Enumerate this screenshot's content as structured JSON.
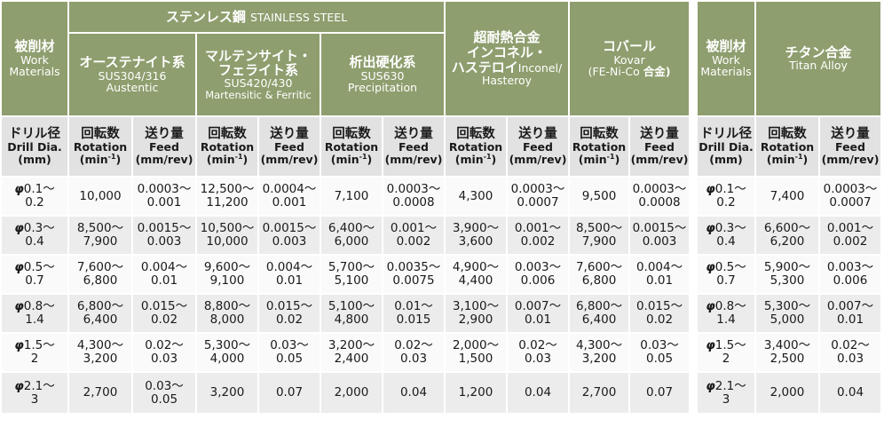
{
  "main_header": {
    "work_materials_ja": "被削材",
    "work_materials_en1": "Work",
    "work_materials_en2": "Materials",
    "stainless_ja": "ステンレス鋼",
    "stainless_en": "STAINLESS STEEL",
    "groups": [
      {
        "ja": "オーステナイト系",
        "l2": "SUS304/316",
        "l3": "Austentic"
      },
      {
        "ja": "マルテンサイト・",
        "ja2": "フェライト系",
        "l2": "SUS420/430",
        "l3": "Martensitic & Ferritic"
      },
      {
        "ja": "析出硬化系",
        "l2": "SUS630",
        "l3": "Precipitation"
      },
      {
        "ja": "超耐熱合金",
        "ja2": "インコネル・",
        "ja3": "ハステロイ",
        "ja3_en": "Inconel/",
        "l3": "Hasteroy"
      },
      {
        "ja": "コバール",
        "l2": "Kovar",
        "l3a": "(FE-Ni-Co ",
        "l3b": "合金)"
      }
    ]
  },
  "sub_header": {
    "drill_ja": "ドリル径",
    "drill_en": "Drill Dia.",
    "drill_unit": "(mm)",
    "rot_ja": "回転数",
    "rot_en": "Rotation",
    "rot_unit_a": "(min",
    "rot_unit_sup": "-1",
    "rot_unit_b": ")",
    "feed_ja": "送り量",
    "feed_en": "Feed",
    "feed_unit": "(mm/rev)"
  },
  "rows": [
    {
      "dia_phi": "φ",
      "dia_a": "0.1〜",
      "dia_b": "0.2",
      "c": [
        [
          "10,000",
          ""
        ],
        [
          "0.0003〜",
          "0.001"
        ],
        [
          "12,500〜",
          "11,200"
        ],
        [
          "0.0004〜",
          "0.001"
        ],
        [
          "7,100",
          ""
        ],
        [
          "0.0003〜",
          "0.0008"
        ],
        [
          "4,300",
          ""
        ],
        [
          "0.0003〜",
          "0.0007"
        ],
        [
          "9,500",
          ""
        ],
        [
          "0.0003〜",
          "0.0008"
        ]
      ]
    },
    {
      "dia_phi": "φ",
      "dia_a": "0.3〜",
      "dia_b": "0.4",
      "c": [
        [
          "8,500〜",
          "7,900"
        ],
        [
          "0.0015〜",
          "0.003"
        ],
        [
          "10,500〜",
          "10,000"
        ],
        [
          "0.0015〜",
          "0.003"
        ],
        [
          "6,400〜",
          "6,000"
        ],
        [
          "0.001〜",
          "0.002"
        ],
        [
          "3,900〜",
          "3,600"
        ],
        [
          "0.001〜",
          "0.002"
        ],
        [
          "8,500〜",
          "7,900"
        ],
        [
          "0.0015〜",
          "0.003"
        ]
      ]
    },
    {
      "dia_phi": "φ",
      "dia_a": "0.5〜",
      "dia_b": "0.7",
      "c": [
        [
          "7,600〜",
          "6,800"
        ],
        [
          "0.004〜",
          "0.01"
        ],
        [
          "9,600〜",
          "9,100"
        ],
        [
          "0.004〜",
          "0.01"
        ],
        [
          "5,700〜",
          "5,100"
        ],
        [
          "0.0035〜",
          "0.0075"
        ],
        [
          "4,900〜",
          "4,400"
        ],
        [
          "0.003〜",
          "0.006"
        ],
        [
          "7,600〜",
          "6,800"
        ],
        [
          "0.004〜",
          "0.01"
        ]
      ]
    },
    {
      "dia_phi": "φ",
      "dia_a": "0.8〜",
      "dia_b": "1.4",
      "c": [
        [
          "6,800〜",
          "6,400"
        ],
        [
          "0.015〜",
          "0.02"
        ],
        [
          "8,800〜",
          "8,000"
        ],
        [
          "0.015〜",
          "0.02"
        ],
        [
          "5,100〜",
          "4,800"
        ],
        [
          "0.01〜",
          "0.015"
        ],
        [
          "3,100〜",
          "2,900"
        ],
        [
          "0.007〜",
          "0.01"
        ],
        [
          "6,800〜",
          "6,400"
        ],
        [
          "0.015〜",
          "0.02"
        ]
      ]
    },
    {
      "dia_phi": "φ",
      "dia_a": "1.5〜",
      "dia_b": "2",
      "c": [
        [
          "4,300〜",
          "3,200"
        ],
        [
          "0.02〜",
          "0.03"
        ],
        [
          "5,300〜",
          "4,000"
        ],
        [
          "0.03〜",
          "0.05"
        ],
        [
          "3,200〜",
          "2,400"
        ],
        [
          "0.02〜",
          "0.03"
        ],
        [
          "2,000〜",
          "1,500"
        ],
        [
          "0.02〜",
          "0.03"
        ],
        [
          "4,300〜",
          "3,200"
        ],
        [
          "0.03〜",
          "0.05"
        ]
      ]
    },
    {
      "dia_phi": "φ",
      "dia_a": "2.1〜",
      "dia_b": "3",
      "c": [
        [
          "2,700",
          ""
        ],
        [
          "0.03〜",
          "0.05"
        ],
        [
          "3,200",
          ""
        ],
        [
          "0.07",
          ""
        ],
        [
          "2,000",
          ""
        ],
        [
          "0.04",
          ""
        ],
        [
          "1,200",
          ""
        ],
        [
          "0.04",
          ""
        ],
        [
          "2,700",
          ""
        ],
        [
          "0.07",
          ""
        ]
      ]
    }
  ],
  "titan": {
    "header": {
      "work_materials_ja": "被削材",
      "work_materials_en1": "Work",
      "work_materials_en2": "Materials",
      "ja": "チタン合金",
      "en": "Titan Alloy"
    },
    "rows": [
      {
        "dia_phi": "φ",
        "dia_a": "0.1〜",
        "dia_b": "0.2",
        "c": [
          [
            "7,400",
            ""
          ],
          [
            "0.0003〜",
            "0.0007"
          ]
        ]
      },
      {
        "dia_phi": "φ",
        "dia_a": "0.3〜",
        "dia_b": "0.4",
        "c": [
          [
            "6,600〜",
            "6,200"
          ],
          [
            "0.001〜",
            "0.002"
          ]
        ]
      },
      {
        "dia_phi": "φ",
        "dia_a": "0.5〜",
        "dia_b": "0.7",
        "c": [
          [
            "5,900〜",
            "5,300"
          ],
          [
            "0.003〜",
            "0.006"
          ]
        ]
      },
      {
        "dia_phi": "φ",
        "dia_a": "0.8〜",
        "dia_b": "1.4",
        "c": [
          [
            "5,300〜",
            "5,000"
          ],
          [
            "0.007〜",
            "0.01"
          ]
        ]
      },
      {
        "dia_phi": "φ",
        "dia_a": "1.5〜",
        "dia_b": "2",
        "c": [
          [
            "3,400〜",
            "2,500"
          ],
          [
            "0.02〜",
            "0.03"
          ]
        ]
      },
      {
        "dia_phi": "φ",
        "dia_a": "2.1〜",
        "dia_b": "3",
        "c": [
          [
            "2,000",
            ""
          ],
          [
            "0.04",
            ""
          ]
        ]
      }
    ]
  },
  "colors": {
    "header_green": "#8e9e6e",
    "subheader_gray": "#e2e2e2",
    "row_light": "#fafafa",
    "row_dark": "#ececec"
  }
}
